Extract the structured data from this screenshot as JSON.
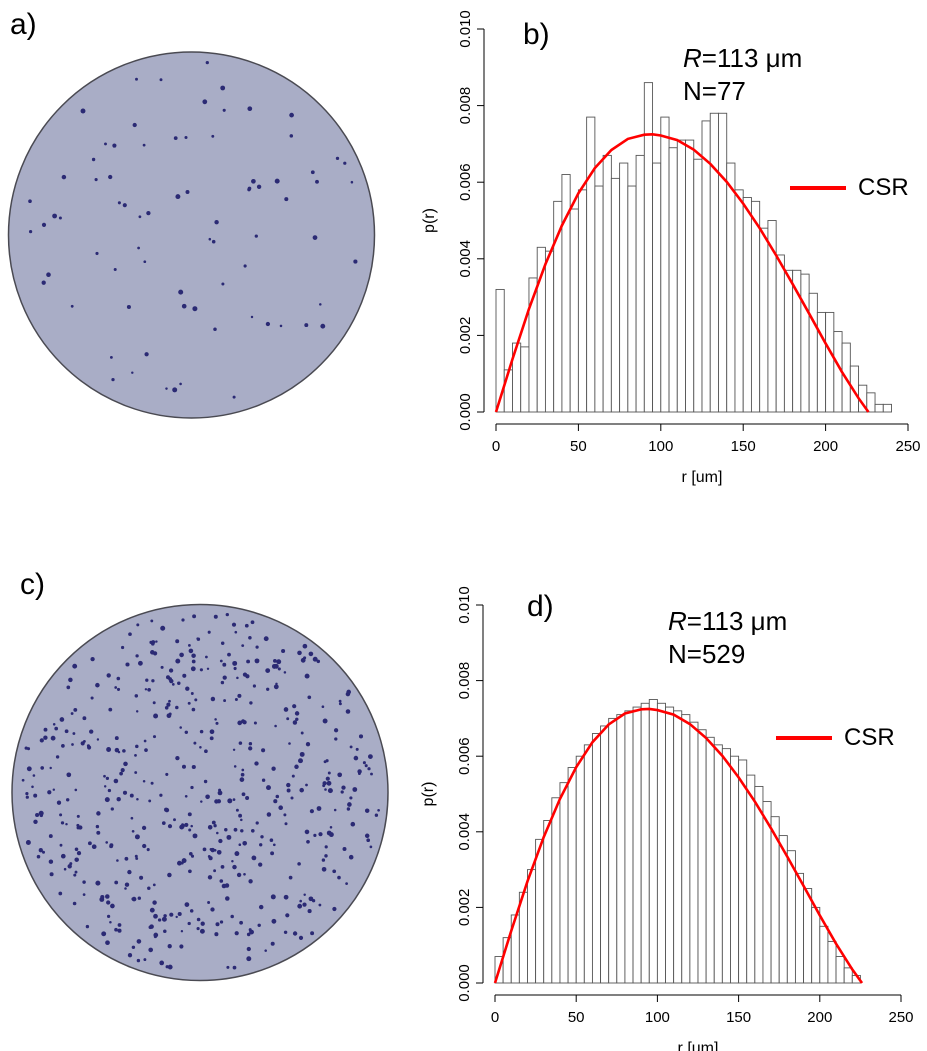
{
  "panels": {
    "a": {
      "label": "a)"
    },
    "b": {
      "label": "b)",
      "R_prefix": "R",
      "R_value": "=113 μm",
      "N": "N=77",
      "legend": "CSR"
    },
    "c": {
      "label": "c)"
    },
    "d": {
      "label": "d)",
      "R_prefix": "R",
      "R_value": "=113 μm",
      "N": "N=529",
      "legend": "CSR"
    }
  },
  "colors": {
    "dish_fill": "#a9adc6",
    "dish_edge": "#4a4a52",
    "dots": "#2b2a74",
    "csr_line": "#ff0000",
    "bars": "#ffffff"
  },
  "chart_data": [
    {
      "type": "bar",
      "panel": "b",
      "xlabel": "r [um]",
      "ylabel": "p(r)",
      "xlim": [
        0,
        250
      ],
      "ylim": [
        0,
        0.01
      ],
      "xticks": [
        "0",
        "50",
        "100",
        "150",
        "200",
        "250"
      ],
      "yticks": [
        "0.000",
        "0.002",
        "0.004",
        "0.006",
        "0.008",
        "0.010"
      ],
      "bin_width": 5,
      "bin_start": 0,
      "values": [
        0.0032,
        0.0011,
        0.0018,
        0.0017,
        0.0035,
        0.0043,
        0.0042,
        0.0055,
        0.0062,
        0.0053,
        0.0058,
        0.0077,
        0.0059,
        0.0067,
        0.0061,
        0.0065,
        0.0059,
        0.0067,
        0.0086,
        0.0065,
        0.0077,
        0.0069,
        0.0071,
        0.0071,
        0.0066,
        0.0076,
        0.0078,
        0.0078,
        0.0065,
        0.0058,
        0.0056,
        0.0055,
        0.0048,
        0.005,
        0.0041,
        0.0037,
        0.0037,
        0.0036,
        0.0031,
        0.0026,
        0.0026,
        0.0021,
        0.0018,
        0.0012,
        0.0007,
        0.0005,
        0.0002,
        0.0002
      ],
      "series": [
        {
          "name": "CSR",
          "type": "line",
          "x": [
            0,
            10,
            20,
            30,
            40,
            50,
            60,
            70,
            80,
            90,
            95,
            100,
            110,
            120,
            130,
            140,
            150,
            160,
            170,
            180,
            190,
            200,
            210,
            220,
            226
          ],
          "y": [
            0,
            0.00138,
            0.00269,
            0.00386,
            0.00487,
            0.00571,
            0.00637,
            0.00684,
            0.00713,
            0.00724,
            0.00725,
            0.00722,
            0.0071,
            0.00685,
            0.00648,
            0.00601,
            0.00544,
            0.0048,
            0.00409,
            0.00334,
            0.00257,
            0.00179,
            0.00104,
            0.00036,
            0
          ]
        }
      ]
    },
    {
      "type": "bar",
      "panel": "d",
      "xlabel": "r [um]",
      "ylabel": "p(r)",
      "xlim": [
        0,
        250
      ],
      "ylim": [
        0,
        0.01
      ],
      "xticks": [
        "0",
        "50",
        "100",
        "150",
        "200",
        "250"
      ],
      "yticks": [
        "0.000",
        "0.002",
        "0.004",
        "0.006",
        "0.008",
        "0.010"
      ],
      "bin_width": 5,
      "bin_start": 0,
      "values": [
        0.0007,
        0.0012,
        0.0018,
        0.0024,
        0.003,
        0.0038,
        0.0043,
        0.0049,
        0.0053,
        0.0057,
        0.006,
        0.0063,
        0.0066,
        0.0068,
        0.007,
        0.0071,
        0.0072,
        0.0073,
        0.0074,
        0.0075,
        0.0074,
        0.0073,
        0.0072,
        0.0071,
        0.0069,
        0.0067,
        0.0065,
        0.0063,
        0.0062,
        0.006,
        0.0059,
        0.0055,
        0.0052,
        0.0048,
        0.0044,
        0.0039,
        0.0035,
        0.0029,
        0.0025,
        0.002,
        0.0015,
        0.0011,
        0.0007,
        0.0004,
        0.0002
      ],
      "series": [
        {
          "name": "CSR",
          "type": "line",
          "x": [
            0,
            10,
            20,
            30,
            40,
            50,
            60,
            70,
            80,
            90,
            95,
            100,
            110,
            120,
            130,
            140,
            150,
            160,
            170,
            180,
            190,
            200,
            210,
            220,
            226
          ],
          "y": [
            0,
            0.00138,
            0.00269,
            0.00386,
            0.00487,
            0.00571,
            0.00637,
            0.00684,
            0.00713,
            0.00724,
            0.00725,
            0.00722,
            0.0071,
            0.00685,
            0.00648,
            0.00601,
            0.00544,
            0.0048,
            0.00409,
            0.00334,
            0.00257,
            0.00179,
            0.00104,
            0.00036,
            0
          ]
        }
      ]
    }
  ]
}
